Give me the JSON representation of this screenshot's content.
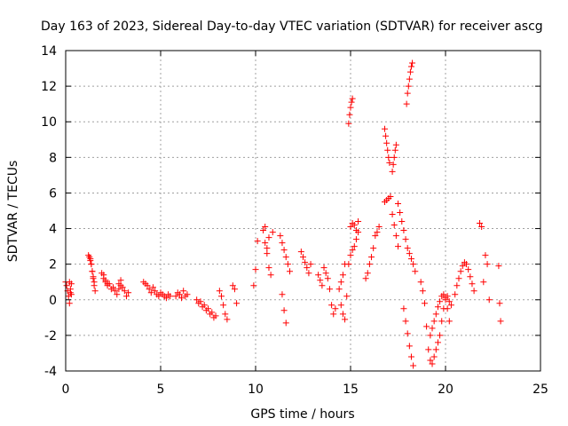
{
  "chart_data": {
    "type": "scatter",
    "title": "Day 163 of 2023, Sidereal Day-to-day VTEC variation (SDTVAR) for receiver ascg",
    "xlabel": "GPS time / hours",
    "ylabel": "SDTVAR / TECUs",
    "xlim": [
      0,
      25
    ],
    "ylim": [
      -4,
      14
    ],
    "xticks": [
      0,
      5,
      10,
      15,
      20,
      25
    ],
    "yticks": [
      -4,
      -2,
      0,
      2,
      4,
      6,
      8,
      10,
      12,
      14
    ],
    "xtick_labels": [
      "0",
      "5",
      "10",
      "15",
      "20",
      "25"
    ],
    "ytick_labels": [
      "-4",
      "-2",
      "0",
      "2",
      "4",
      "6",
      "8",
      "10",
      "12",
      "14"
    ],
    "grid": true,
    "marker": "plus",
    "color": "#ff0000",
    "series": [
      {
        "name": "ascg",
        "x": [
          0.0,
          0.05,
          0.1,
          0.15,
          0.2,
          0.25,
          0.3,
          0.2,
          0.25,
          0.3,
          1.2,
          1.25,
          1.3,
          1.35,
          1.4,
          1.45,
          1.5,
          1.3,
          1.35,
          1.4,
          1.45,
          1.5,
          1.55,
          1.9,
          2.0,
          2.1,
          2.2,
          2.3,
          2.4,
          2.5,
          2.6,
          2.7,
          2.8,
          2.9,
          2.0,
          2.1,
          2.2,
          2.8,
          2.9,
          3.0,
          3.1,
          3.2,
          3.3,
          4.1,
          4.2,
          4.3,
          4.4,
          4.5,
          4.6,
          4.7,
          4.8,
          4.9,
          5.0,
          5.1,
          5.2,
          5.3,
          5.4,
          5.5,
          5.8,
          5.9,
          6.0,
          6.1,
          6.2,
          6.3,
          6.4,
          6.9,
          7.0,
          7.1,
          7.2,
          7.3,
          7.4,
          7.5,
          7.6,
          7.7,
          7.8,
          7.9,
          8.1,
          8.2,
          8.3,
          8.4,
          8.5,
          8.8,
          8.9,
          9.0,
          9.9,
          10.0,
          10.1,
          10.4,
          10.5,
          10.6,
          10.7,
          10.8,
          10.9,
          10.5,
          10.6,
          10.7,
          11.3,
          11.4,
          11.5,
          11.6,
          11.7,
          11.8,
          11.4,
          11.5,
          11.6,
          12.4,
          12.5,
          12.6,
          12.7,
          12.8,
          12.9,
          13.3,
          13.4,
          13.5,
          13.6,
          13.7,
          13.8,
          13.9,
          14.0,
          14.1,
          14.2,
          14.4,
          14.5,
          14.6,
          14.7,
          14.8,
          14.5,
          14.6,
          14.7,
          14.9,
          14.95,
          15.0,
          15.05,
          15.1,
          14.9,
          15.0,
          15.1,
          15.2,
          15.3,
          15.4,
          15.0,
          15.1,
          15.2,
          15.3,
          15.4,
          15.8,
          15.9,
          16.0,
          16.1,
          16.2,
          16.4,
          16.5,
          16.3,
          16.8,
          16.85,
          16.9,
          16.95,
          17.0,
          17.05,
          17.2,
          17.25,
          17.3,
          17.35,
          17.4,
          16.8,
          16.9,
          17.0,
          17.1,
          17.2,
          17.3,
          17.4,
          17.5,
          17.5,
          17.6,
          17.7,
          17.8,
          17.9,
          18.0,
          18.1,
          18.2,
          18.3,
          18.4,
          17.95,
          18.0,
          18.05,
          18.1,
          18.15,
          18.2,
          18.25,
          17.8,
          17.9,
          18.0,
          18.1,
          18.2,
          18.3,
          18.7,
          18.8,
          18.9,
          19.0,
          19.1,
          19.2,
          19.3,
          19.4,
          19.5,
          19.6,
          19.7,
          19.8,
          19.9,
          20.0,
          20.1,
          20.2,
          20.3,
          19.2,
          19.3,
          19.4,
          19.5,
          19.6,
          19.7,
          19.8,
          19.9,
          20.0,
          20.1,
          20.2,
          20.5,
          20.6,
          20.7,
          20.8,
          20.9,
          21.0,
          21.1,
          21.2,
          21.3,
          21.4,
          21.5,
          21.8,
          21.9,
          22.0,
          22.1,
          22.2,
          22.3,
          22.8,
          22.85,
          22.9
        ],
        "y": [
          1.0,
          0.8,
          0.5,
          0.2,
          -0.2,
          0.4,
          0.9,
          1.0,
          0.6,
          0.3,
          2.5,
          2.4,
          2.2,
          2.0,
          1.6,
          1.3,
          1.0,
          2.3,
          2.0,
          1.6,
          1.2,
          0.8,
          0.5,
          1.5,
          1.2,
          1.0,
          0.8,
          0.9,
          0.6,
          0.7,
          0.5,
          0.3,
          0.6,
          0.8,
          1.4,
          1.1,
          0.9,
          0.9,
          1.1,
          0.7,
          0.5,
          0.2,
          0.4,
          1.0,
          0.9,
          0.8,
          0.6,
          0.4,
          0.7,
          0.5,
          0.3,
          0.2,
          0.4,
          0.3,
          0.2,
          0.1,
          0.3,
          0.2,
          0.2,
          0.4,
          0.3,
          0.1,
          0.5,
          0.2,
          0.3,
          0.0,
          -0.2,
          -0.1,
          -0.4,
          -0.3,
          -0.6,
          -0.5,
          -0.8,
          -0.7,
          -1.0,
          -0.9,
          0.5,
          0.2,
          -0.3,
          -0.8,
          -1.1,
          0.8,
          0.6,
          -0.2,
          0.8,
          1.7,
          3.3,
          3.9,
          3.2,
          2.6,
          1.8,
          1.4,
          3.8,
          4.1,
          2.9,
          3.5,
          3.6,
          3.2,
          2.8,
          2.4,
          2.0,
          1.6,
          0.3,
          -0.6,
          -1.3,
          2.7,
          2.4,
          2.1,
          1.8,
          1.5,
          2.0,
          1.4,
          1.1,
          0.8,
          1.8,
          1.5,
          1.2,
          0.6,
          -0.3,
          -0.8,
          -0.5,
          0.6,
          1.0,
          1.4,
          2.0,
          0.2,
          -0.3,
          -0.8,
          -1.1,
          9.9,
          10.4,
          10.8,
          11.1,
          11.3,
          2.0,
          2.5,
          2.8,
          3.0,
          3.4,
          3.8,
          4.1,
          4.3,
          4.2,
          3.9,
          4.4,
          1.2,
          1.5,
          2.0,
          2.4,
          2.9,
          3.8,
          4.1,
          3.6,
          9.6,
          9.2,
          8.8,
          8.4,
          8.0,
          7.7,
          7.2,
          7.6,
          8.0,
          8.4,
          8.7,
          5.5,
          5.6,
          5.7,
          5.8,
          4.8,
          4.2,
          3.6,
          3.0,
          5.4,
          4.9,
          4.4,
          3.9,
          3.4,
          2.9,
          2.6,
          2.3,
          2.0,
          1.6,
          11.0,
          11.6,
          12.0,
          12.4,
          12.8,
          13.1,
          13.3,
          -0.5,
          -1.2,
          -1.9,
          -2.6,
          -3.2,
          -3.7,
          1.0,
          0.5,
          -0.2,
          -1.5,
          -2.8,
          -3.4,
          -3.6,
          -3.2,
          -2.8,
          -2.4,
          -2.0,
          -1.2,
          -0.5,
          0.0,
          0.2,
          -0.1,
          -0.3,
          -2.0,
          -1.6,
          -1.2,
          -0.8,
          -0.4,
          -0.1,
          0.2,
          0.3,
          0.1,
          -0.5,
          -1.2,
          0.3,
          0.8,
          1.2,
          1.6,
          1.9,
          2.1,
          2.0,
          1.7,
          1.3,
          0.9,
          0.5,
          4.3,
          4.1,
          1.0,
          2.5,
          2.0,
          0.0,
          1.9,
          -0.2,
          -1.2
        ]
      }
    ]
  }
}
